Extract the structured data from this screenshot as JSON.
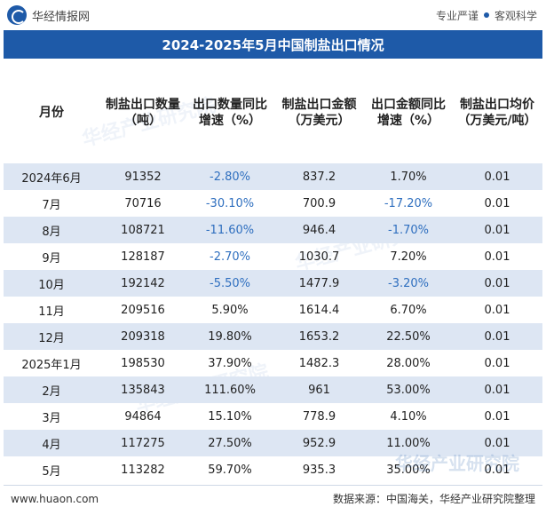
{
  "header": {
    "brand": "华经情报网",
    "slogan_left": "专业严谨",
    "slogan_right": "客观科学"
  },
  "title": "2024-2025年5月中国制盐出口情况",
  "columns": [
    "月份",
    "制盐出口数量（吨）",
    "出口数量同比增速（%）",
    "制盐出口金额（万美元）",
    "出口金额同比增速（%）",
    "制盐出口均价（万美元/吨）"
  ],
  "rows": [
    {
      "month": "2024年6月",
      "qty": "91352",
      "qty_yoy": "-2.80%",
      "amt": "837.2",
      "amt_yoy": "1.70%",
      "price": "0.01"
    },
    {
      "month": "7月",
      "qty": "70716",
      "qty_yoy": "-30.10%",
      "amt": "700.9",
      "amt_yoy": "-17.20%",
      "price": "0.01"
    },
    {
      "month": "8月",
      "qty": "108721",
      "qty_yoy": "-11.60%",
      "amt": "946.4",
      "amt_yoy": "-1.70%",
      "price": "0.01"
    },
    {
      "month": "9月",
      "qty": "128187",
      "qty_yoy": "-2.70%",
      "amt": "1030.7",
      "amt_yoy": "7.20%",
      "price": "0.01"
    },
    {
      "month": "10月",
      "qty": "192142",
      "qty_yoy": "-5.50%",
      "amt": "1477.9",
      "amt_yoy": "-3.20%",
      "price": "0.01"
    },
    {
      "month": "11月",
      "qty": "209516",
      "qty_yoy": "5.90%",
      "amt": "1614.4",
      "amt_yoy": "6.70%",
      "price": "0.01"
    },
    {
      "month": "12月",
      "qty": "209318",
      "qty_yoy": "19.80%",
      "amt": "1653.2",
      "amt_yoy": "22.50%",
      "price": "0.01"
    },
    {
      "month": "2025年1月",
      "qty": "198530",
      "qty_yoy": "37.90%",
      "amt": "1482.3",
      "amt_yoy": "28.00%",
      "price": "0.01"
    },
    {
      "month": "2月",
      "qty": "135843",
      "qty_yoy": "111.60%",
      "amt": "961",
      "amt_yoy": "53.00%",
      "price": "0.01"
    },
    {
      "month": "3月",
      "qty": "94864",
      "qty_yoy": "15.10%",
      "amt": "778.9",
      "amt_yoy": "4.10%",
      "price": "0.01"
    },
    {
      "month": "4月",
      "qty": "117275",
      "qty_yoy": "27.50%",
      "amt": "952.9",
      "amt_yoy": "11.00%",
      "price": "0.01"
    },
    {
      "month": "5月",
      "qty": "113282",
      "qty_yoy": "59.70%",
      "amt": "935.3",
      "amt_yoy": "35.00%",
      "price": "0.01"
    }
  ],
  "footer": {
    "website": "www.huaon.com",
    "source": "数据来源：中国海关，华经产业研究院整理",
    "watermark": "华经产业研究院"
  },
  "colors": {
    "accent": "#1e5aa8",
    "stripe": "#dde6f3",
    "negative": "#2f6fbf"
  }
}
